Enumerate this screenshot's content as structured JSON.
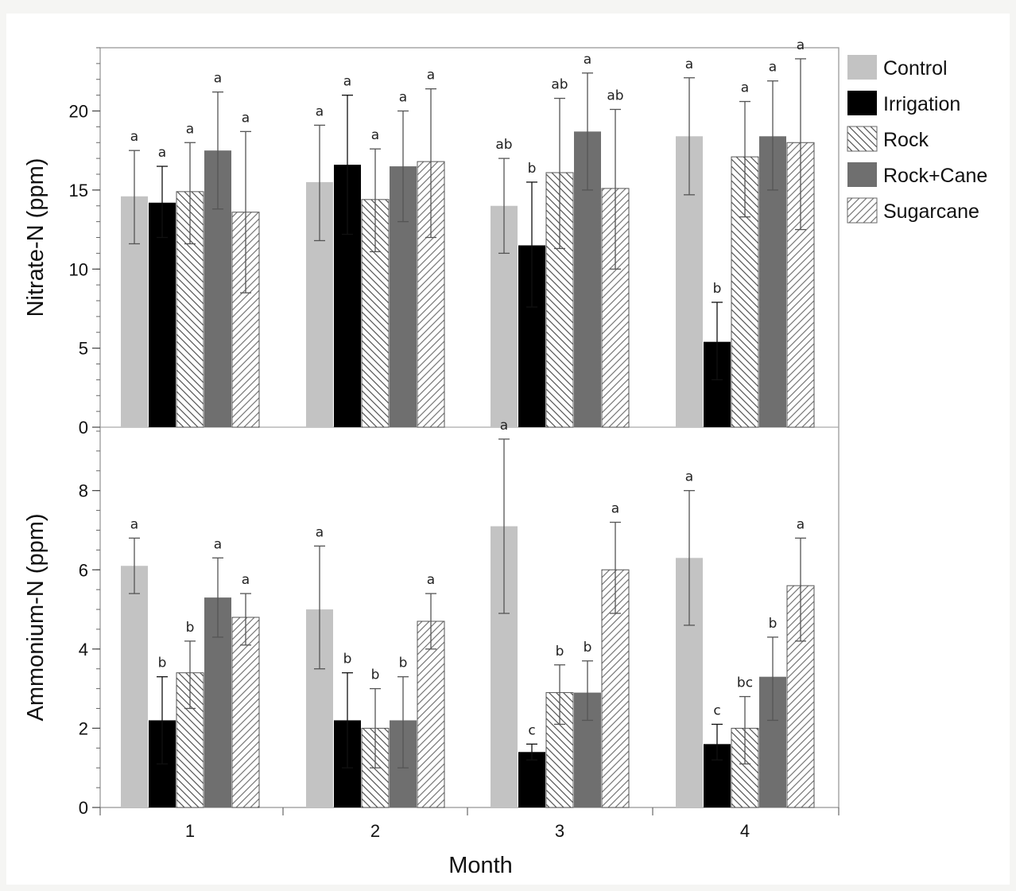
{
  "chart_data": {
    "type": "bar",
    "xlabel": "Month",
    "categories": [
      "1",
      "2",
      "3",
      "4"
    ],
    "legend": {
      "placement": "right",
      "entries": [
        "Control",
        "Irrigation",
        "Rock",
        "Rock+Cane",
        "Sugarcane"
      ]
    },
    "series_styles": [
      {
        "name": "Control",
        "fill": "#c3c3c3",
        "pattern": "solid"
      },
      {
        "name": "Irrigation",
        "fill": "#000000",
        "pattern": "solid"
      },
      {
        "name": "Rock",
        "fill": "#ffffff",
        "pattern": "back-hatch",
        "line": "#555555"
      },
      {
        "name": "Rock+Cane",
        "fill": "#6f6f6f",
        "pattern": "solid"
      },
      {
        "name": "Sugarcane",
        "fill": "#ffffff",
        "pattern": "forward-hatch",
        "line": "#777777"
      }
    ],
    "panels": [
      {
        "ylabel": "Nitrate-N (ppm)",
        "ylim": [
          0,
          24
        ],
        "yticks": [
          0,
          5,
          10,
          15,
          20
        ],
        "series": [
          {
            "name": "Control",
            "values": [
              14.6,
              15.5,
              14.0,
              18.4
            ],
            "err_low": [
              11.6,
              11.8,
              11.0,
              14.7
            ],
            "err_high": [
              17.5,
              19.1,
              17.0,
              22.1
            ],
            "letters": [
              "a",
              "a",
              "ab",
              "a"
            ]
          },
          {
            "name": "Irrigation",
            "values": [
              14.2,
              16.6,
              11.5,
              5.4
            ],
            "err_low": [
              12.0,
              12.2,
              7.6,
              3.0
            ],
            "err_high": [
              16.5,
              21.0,
              15.5,
              7.9
            ],
            "letters": [
              "a",
              "a",
              "b",
              "b"
            ]
          },
          {
            "name": "Rock",
            "values": [
              14.9,
              14.4,
              16.1,
              17.1
            ],
            "err_low": [
              11.6,
              11.1,
              11.3,
              13.3
            ],
            "err_high": [
              18.0,
              17.6,
              20.8,
              20.6
            ],
            "letters": [
              "a",
              "a",
              "ab",
              "a"
            ]
          },
          {
            "name": "Rock+Cane",
            "values": [
              17.5,
              16.5,
              18.7,
              18.4
            ],
            "err_low": [
              13.8,
              13.0,
              15.0,
              15.0
            ],
            "err_high": [
              21.2,
              20.0,
              22.4,
              21.9
            ],
            "letters": [
              "a",
              "a",
              "a",
              "a"
            ]
          },
          {
            "name": "Sugarcane",
            "values": [
              13.6,
              16.8,
              15.1,
              18.0
            ],
            "err_low": [
              8.5,
              12.0,
              10.0,
              12.5
            ],
            "err_high": [
              18.7,
              21.4,
              20.1,
              23.3
            ],
            "letters": [
              "a",
              "a",
              "ab",
              "a"
            ]
          }
        ]
      },
      {
        "ylabel": "Ammonium-N (ppm)",
        "ylim": [
          0,
          9.6
        ],
        "yticks": [
          0,
          2,
          4,
          6,
          8
        ],
        "series": [
          {
            "name": "Control",
            "values": [
              6.1,
              5.0,
              7.1,
              6.3
            ],
            "err_low": [
              5.4,
              3.5,
              4.9,
              4.6
            ],
            "err_high": [
              6.8,
              6.6,
              9.3,
              8.0
            ],
            "letters": [
              "a",
              "a",
              "a",
              "a"
            ]
          },
          {
            "name": "Irrigation",
            "values": [
              2.2,
              2.2,
              1.4,
              1.6
            ],
            "err_low": [
              1.1,
              1.0,
              1.2,
              1.2
            ],
            "err_high": [
              3.3,
              3.4,
              1.6,
              2.1
            ],
            "letters": [
              "b",
              "b",
              "c",
              "c"
            ]
          },
          {
            "name": "Rock",
            "values": [
              3.4,
              2.0,
              2.9,
              2.0
            ],
            "err_low": [
              2.5,
              1.0,
              2.1,
              1.1
            ],
            "err_high": [
              4.2,
              3.0,
              3.6,
              2.8
            ],
            "letters": [
              "b",
              "b",
              "b",
              "bc"
            ]
          },
          {
            "name": "Rock+Cane",
            "values": [
              5.3,
              2.2,
              2.9,
              3.3
            ],
            "err_low": [
              4.3,
              1.0,
              2.2,
              2.2
            ],
            "err_high": [
              6.3,
              3.3,
              3.7,
              4.3
            ],
            "letters": [
              "a",
              "b",
              "b",
              "b"
            ]
          },
          {
            "name": "Sugarcane",
            "values": [
              4.8,
              4.7,
              6.0,
              5.6
            ],
            "err_low": [
              4.1,
              4.0,
              4.9,
              4.2
            ],
            "err_high": [
              5.4,
              5.4,
              7.2,
              6.8
            ],
            "letters": [
              "a",
              "a",
              "a",
              "a"
            ]
          }
        ]
      }
    ]
  }
}
